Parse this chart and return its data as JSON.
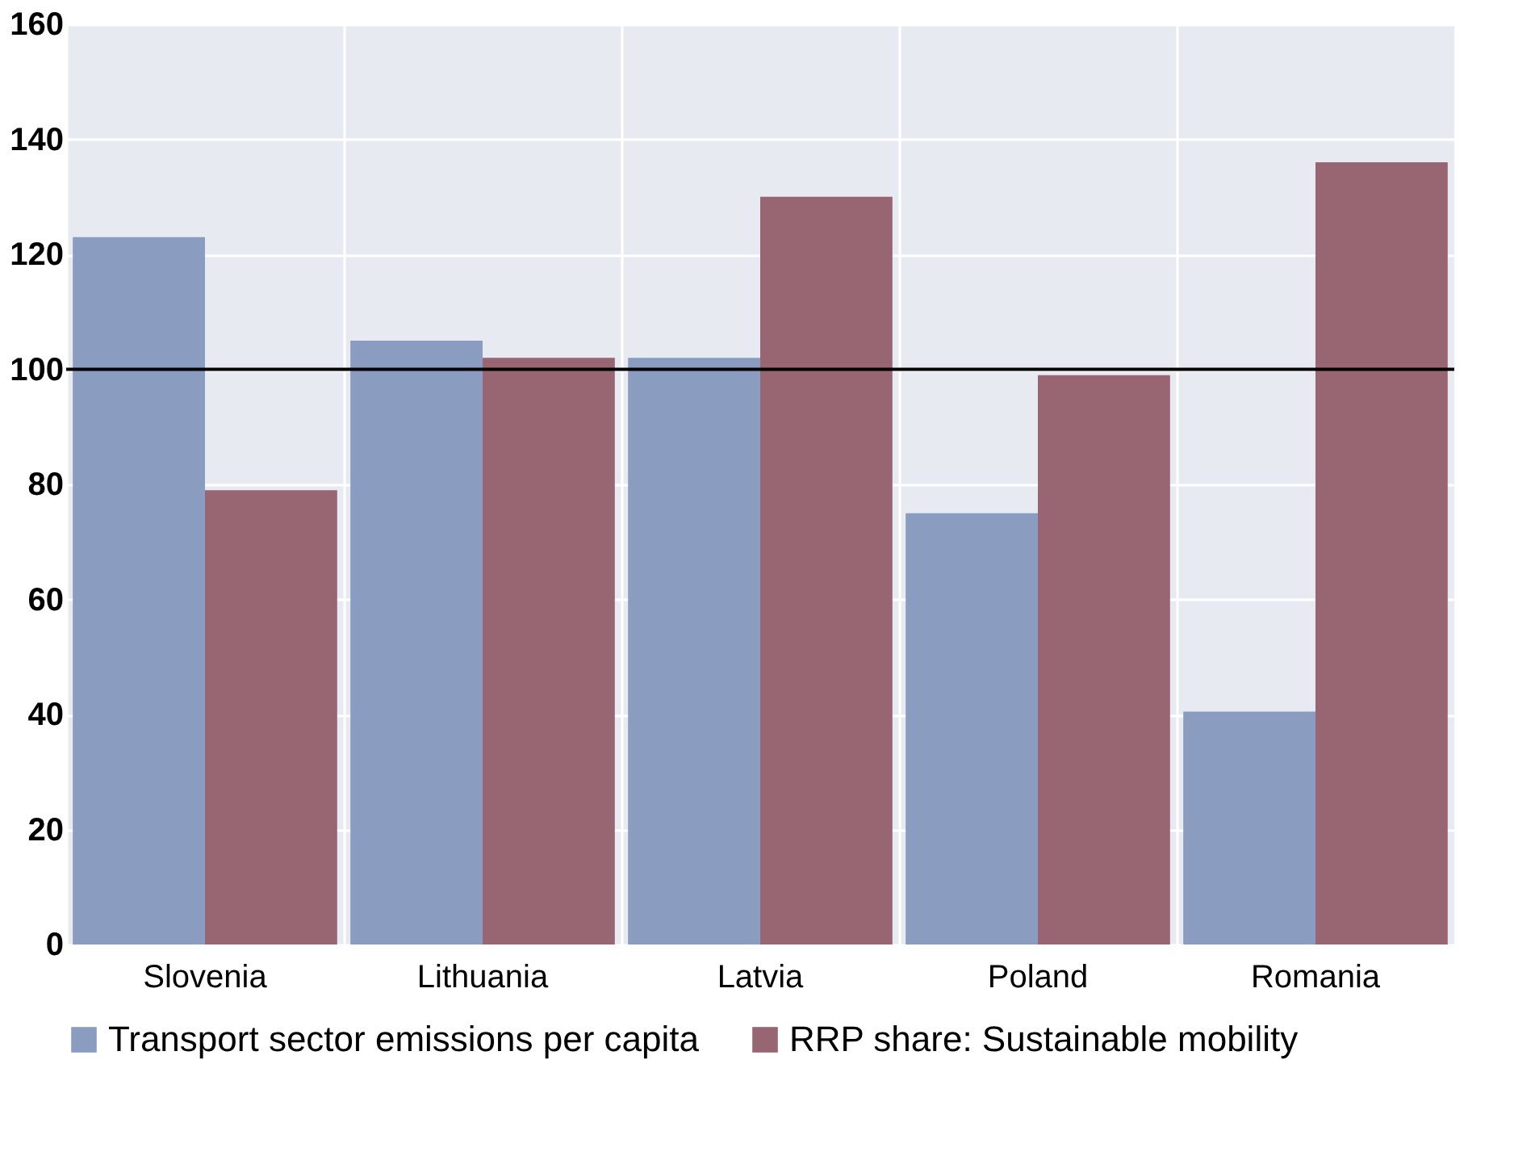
{
  "chart_data": {
    "type": "bar",
    "categories": [
      "Slovenia",
      "Lithuania",
      "Latvia",
      "Poland",
      "Romania"
    ],
    "series": [
      {
        "name": "Transport sector emissions per capita",
        "color": "#8a9dc0",
        "values": [
          123,
          105,
          102,
          75,
          40.5
        ]
      },
      {
        "name": "RRP share: Sustainable mobility",
        "color": "#986672",
        "values": [
          79,
          102,
          130,
          99,
          136
        ]
      }
    ],
    "ylim": [
      0,
      160
    ],
    "yticks": [
      0,
      20,
      40,
      60,
      80,
      100,
      120,
      140,
      160
    ],
    "ref_lines": [
      {
        "axis": "y",
        "value": 100,
        "color": "#000000"
      }
    ],
    "grid": true,
    "legend": "bottom"
  }
}
